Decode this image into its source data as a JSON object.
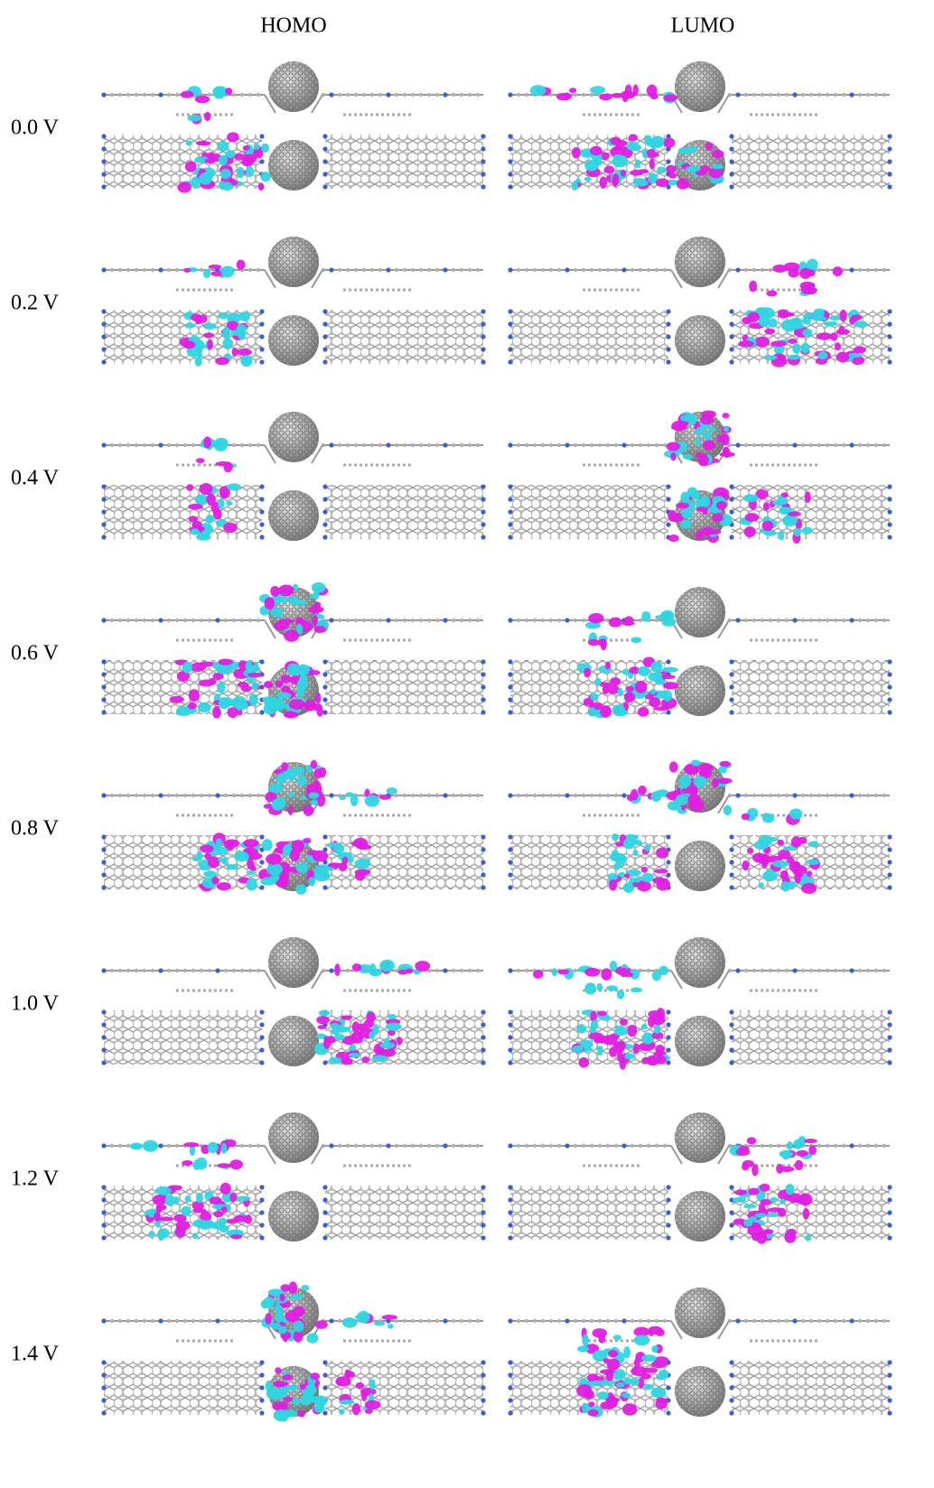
{
  "header": {
    "columns": [
      "HOMO",
      "LUMO"
    ]
  },
  "rows": [
    "0.0 V",
    "0.2 V",
    "0.4 V",
    "0.6 V",
    "0.8 V",
    "1.0 V",
    "1.2 V",
    "1.4 V"
  ]
}
